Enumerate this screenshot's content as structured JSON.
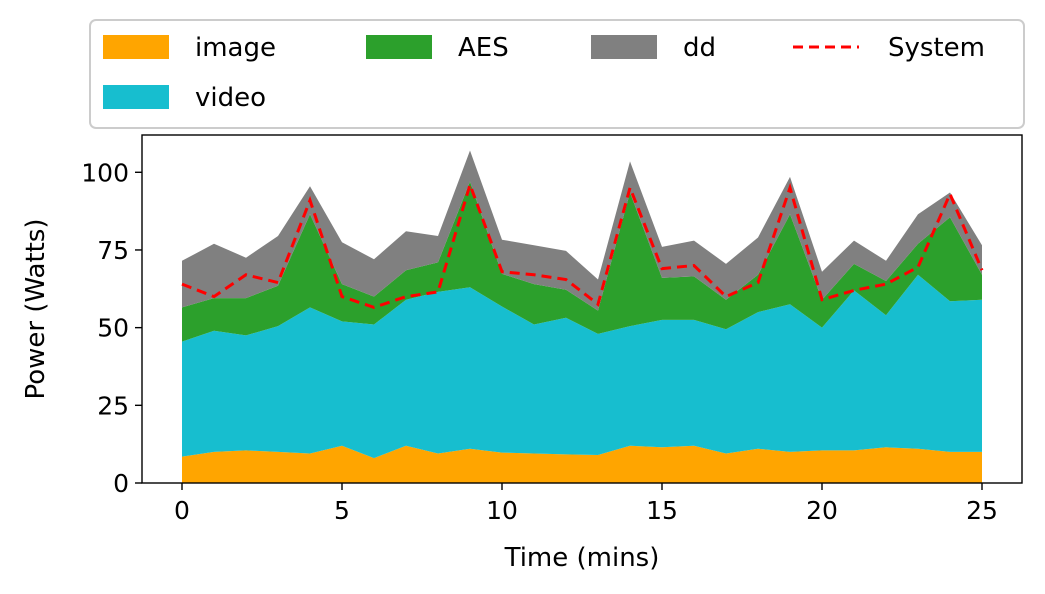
{
  "chart_data": {
    "type": "area",
    "title": "",
    "xlabel": "Time (mins)",
    "ylabel": "Power (Watts)",
    "xlim": [
      -1.25,
      26.25
    ],
    "ylim": [
      0,
      112
    ],
    "xticks": [
      0,
      5,
      10,
      15,
      20,
      25
    ],
    "yticks": [
      0,
      25,
      50,
      75,
      100
    ],
    "grid": false,
    "legend_placement": "top (above plot)",
    "x": [
      0,
      1,
      2,
      3,
      4,
      5,
      6,
      7,
      8,
      9,
      10,
      11,
      12,
      13,
      14,
      15,
      16,
      17,
      18,
      19,
      20,
      21,
      22,
      23,
      24,
      25
    ],
    "series": [
      {
        "name": "image",
        "color": "#ffa500",
        "values": [
          8.5,
          10,
          10.5,
          10,
          9.5,
          12,
          8,
          12,
          9.5,
          11,
          9.8,
          9.5,
          9.2,
          9.0,
          12,
          11.5,
          12,
          9.5,
          11,
          10,
          10.5,
          10.5,
          11.5,
          11,
          10,
          10
        ]
      },
      {
        "name": "video",
        "color": "#17becf",
        "values": [
          37,
          39,
          37,
          40.5,
          47,
          40,
          43,
          47,
          52,
          52,
          47,
          41.5,
          44,
          39,
          38.5,
          41,
          40.5,
          40,
          44,
          47.5,
          39.5,
          51.5,
          42.5,
          56,
          48.5,
          49
        ]
      },
      {
        "name": "AES",
        "color": "#2ca02c",
        "values": [
          11,
          10.5,
          12,
          13,
          30,
          12,
          9,
          9.5,
          9.5,
          34,
          10.5,
          13,
          9,
          7.5,
          43,
          13.5,
          14,
          9.5,
          12,
          29,
          9,
          8.5,
          11,
          10,
          27,
          8
        ]
      },
      {
        "name": "dd",
        "color": "#808080",
        "values": [
          15,
          17.5,
          13,
          16,
          9,
          13.5,
          12,
          12.5,
          8.5,
          10,
          11,
          12.5,
          12.5,
          10,
          10,
          10,
          11.5,
          11.5,
          12,
          12,
          9,
          7.5,
          6.5,
          9.5,
          8,
          9.5
        ]
      }
    ],
    "line_series": {
      "name": "System",
      "color": "#ff0000",
      "style": "dashed",
      "values": [
        64,
        60,
        67,
        64.5,
        91,
        60,
        56.5,
        60,
        61.5,
        96,
        68,
        67,
        65.5,
        57.5,
        95,
        69,
        70,
        60,
        64.5,
        95,
        59,
        62,
        64,
        69.5,
        93,
        68.5
      ]
    }
  }
}
